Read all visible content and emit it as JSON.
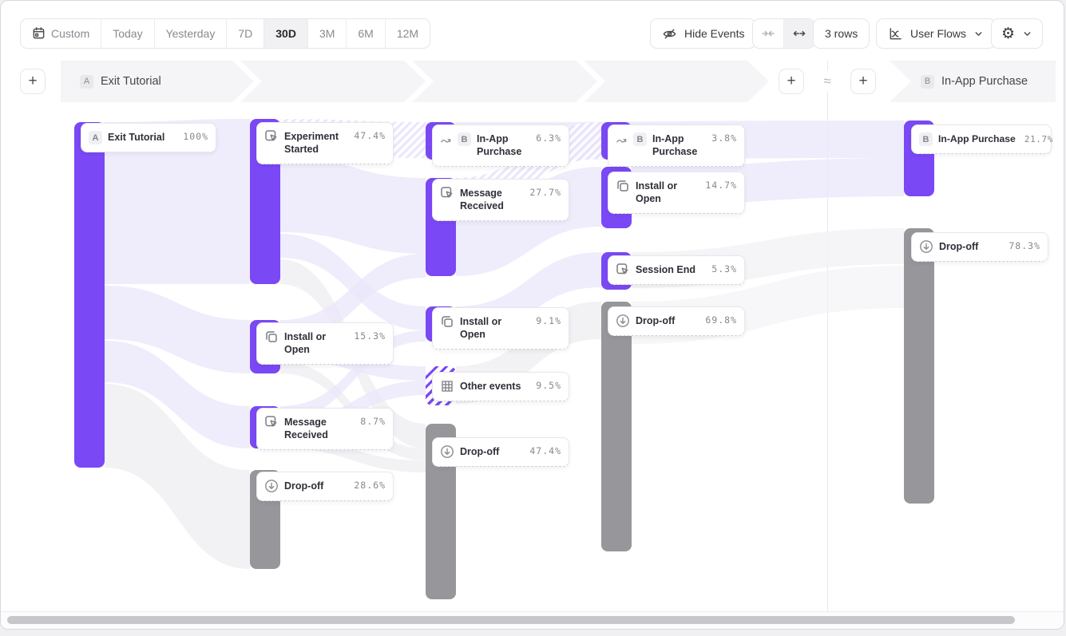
{
  "toolbar": {
    "date_ranges": [
      {
        "label": "Custom",
        "selected": false
      },
      {
        "label": "Today",
        "selected": false
      },
      {
        "label": "Yesterday",
        "selected": false
      },
      {
        "label": "7D",
        "selected": false
      },
      {
        "label": "30D",
        "selected": true
      },
      {
        "label": "3M",
        "selected": false
      },
      {
        "label": "6M",
        "selected": false
      },
      {
        "label": "12M",
        "selected": false
      }
    ],
    "hide_events_label": "Hide Events",
    "rows_label": "3 rows",
    "view_selector_label": "User Flows"
  },
  "header": {
    "left_flow": {
      "badge": "A",
      "label": "Exit Tutorial"
    },
    "right_flow": {
      "badge": "B",
      "label": "In-App Purchase"
    },
    "approx_symbol": "≈"
  },
  "colors": {
    "accent_purple": "#7A48F5",
    "dropoff_gray": "#97969B",
    "ribbon_purple": "#EBE7FB",
    "ribbon_gray": "#F1F0F3",
    "band_gray": "#F5F4F6"
  },
  "chart_data": {
    "type": "sankey",
    "title": "User Flows from A Exit Tutorial to B In-App Purchase",
    "legend_position": "none",
    "columns": [
      {
        "name": "start",
        "nodes": [
          {
            "badge": "A",
            "label": "Exit Tutorial",
            "pct": 100,
            "pct_label": "100%",
            "kind": "start"
          }
        ]
      },
      {
        "name": "step1",
        "nodes": [
          {
            "icon": "click",
            "label": "Experiment Started",
            "pct": 47.4,
            "pct_label": "47.4%",
            "kind": "event"
          },
          {
            "icon": "copy",
            "label": "Install or Open",
            "pct": 15.3,
            "pct_label": "15.3%",
            "kind": "event"
          },
          {
            "icon": "click",
            "label": "Message Received",
            "pct": 8.7,
            "pct_label": "8.7%",
            "kind": "event"
          },
          {
            "icon": "dropoff",
            "label": "Drop-off",
            "pct": 28.6,
            "pct_label": "28.6%",
            "kind": "dropoff"
          }
        ]
      },
      {
        "name": "step2",
        "nodes": [
          {
            "icon": "indirect",
            "badge": "B",
            "label": "In-App Purchase",
            "pct": 6.3,
            "pct_label": "6.3%",
            "kind": "goal-indirect"
          },
          {
            "icon": "click",
            "label": "Message Received",
            "pct": 27.7,
            "pct_label": "27.7%",
            "kind": "event"
          },
          {
            "icon": "copy",
            "label": "Install or Open",
            "pct": 9.1,
            "pct_label": "9.1%",
            "kind": "event"
          },
          {
            "icon": "grid",
            "label": "Other events",
            "pct": 9.5,
            "pct_label": "9.5%",
            "kind": "other"
          },
          {
            "icon": "dropoff",
            "label": "Drop-off",
            "pct": 47.4,
            "pct_label": "47.4%",
            "kind": "dropoff"
          }
        ]
      },
      {
        "name": "step3",
        "nodes": [
          {
            "icon": "indirect",
            "badge": "B",
            "label": "In-App Purchase",
            "pct": 3.8,
            "pct_label": "3.8%",
            "kind": "goal-indirect"
          },
          {
            "icon": "copy",
            "label": "Install or Open",
            "pct": 14.7,
            "pct_label": "14.7%",
            "kind": "event"
          },
          {
            "icon": "click",
            "label": "Session End",
            "pct": 5.3,
            "pct_label": "5.3%",
            "kind": "event"
          },
          {
            "icon": "dropoff",
            "label": "Drop-off",
            "pct": 69.8,
            "pct_label": "69.8%",
            "kind": "dropoff"
          }
        ]
      },
      {
        "name": "end",
        "nodes": [
          {
            "badge": "B",
            "label": "In-App Purchase",
            "pct": 21.7,
            "pct_label": "21.7%",
            "kind": "goal"
          },
          {
            "icon": "dropoff",
            "label": "Drop-off",
            "pct": 78.3,
            "pct_label": "78.3%",
            "kind": "dropoff"
          }
        ]
      }
    ]
  }
}
